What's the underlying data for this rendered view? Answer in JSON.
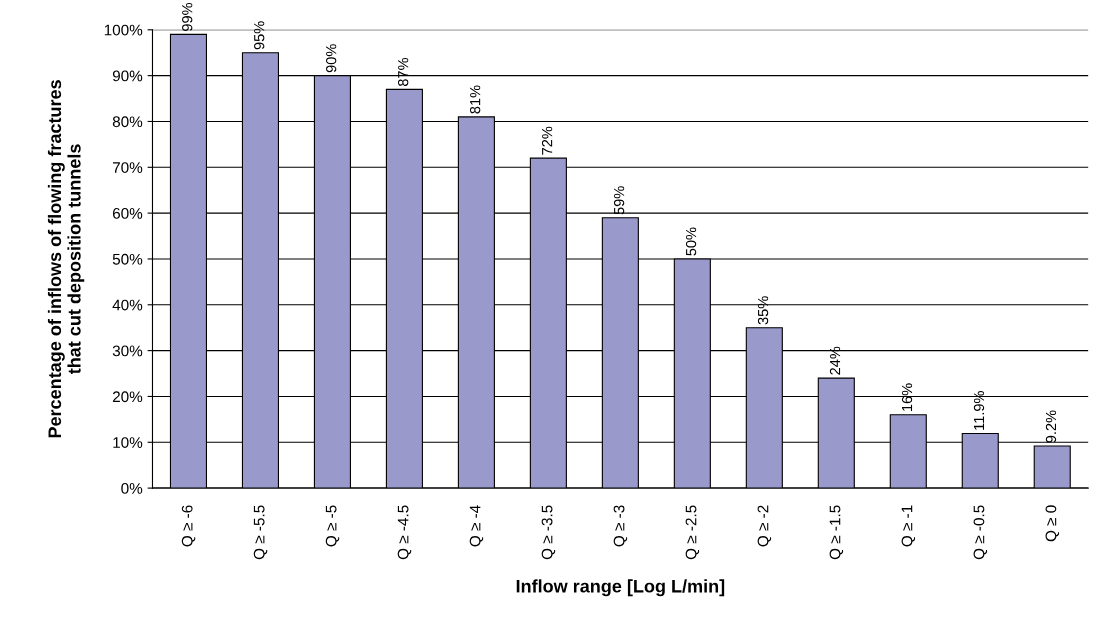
{
  "chart_data": {
    "type": "bar",
    "xlabel": "Inflow range [Log L/min]",
    "ylabel": "Percentage of inflows of flowing fractures\nthat cut deposition tunnels",
    "categories": [
      "Q ≥ -6",
      "Q ≥ -5.5",
      "Q ≥ -5",
      "Q ≥ -4.5",
      "Q ≥ -4",
      "Q ≥ -3.5",
      "Q ≥ -3",
      "Q ≥ -2.5",
      "Q ≥ -2",
      "Q ≥ -1.5",
      "Q ≥ -1",
      "Q ≥ -0.5",
      "Q ≥ 0"
    ],
    "values": [
      99,
      95,
      90,
      87,
      81,
      72,
      59,
      50,
      35,
      24,
      16,
      11.9,
      9.2
    ],
    "value_labels": [
      "99%",
      "95%",
      "90%",
      "87%",
      "81%",
      "72%",
      "59%",
      "50%",
      "35%",
      "24%",
      "16%",
      "11.9%",
      "9.2%"
    ],
    "color": "#9999cc",
    "ylim": [
      0,
      100
    ],
    "yticks": [
      {
        "value": 0,
        "label": "0%"
      },
      {
        "value": 10,
        "label": "10%"
      },
      {
        "value": 20,
        "label": "20%"
      },
      {
        "value": 30,
        "label": "30%"
      },
      {
        "value": 40,
        "label": "40%"
      },
      {
        "value": 50,
        "label": "50%"
      },
      {
        "value": 60,
        "label": "60%"
      },
      {
        "value": 70,
        "label": "70%"
      },
      {
        "value": 80,
        "label": "80%"
      },
      {
        "value": 90,
        "label": "90%"
      },
      {
        "value": 100,
        "label": "100%"
      }
    ],
    "grid": "y"
  }
}
